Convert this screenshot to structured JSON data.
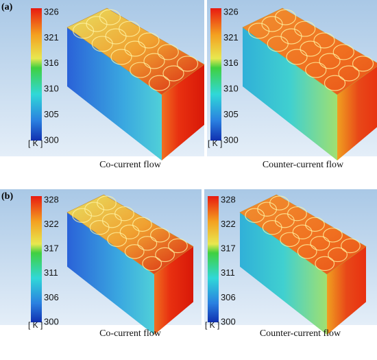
{
  "panels": [
    {
      "label": "(a)",
      "views": [
        {
          "ticks": [
            326,
            321,
            316,
            310,
            305,
            300
          ],
          "unit": "[ K ]",
          "caption": "Co-current flow"
        },
        {
          "ticks": [
            326,
            321,
            316,
            310,
            305,
            300
          ],
          "unit": "[ K ]",
          "caption": "Counter-current flow"
        }
      ]
    },
    {
      "label": "(b)",
      "views": [
        {
          "ticks": [
            328,
            322,
            317,
            311,
            306,
            300
          ],
          "unit": "[ K ]",
          "caption": "Co-current flow"
        },
        {
          "ticks": [
            328,
            322,
            317,
            311,
            306,
            300
          ],
          "unit": "[ K ]",
          "caption": "Counter-current flow"
        }
      ]
    }
  ]
}
